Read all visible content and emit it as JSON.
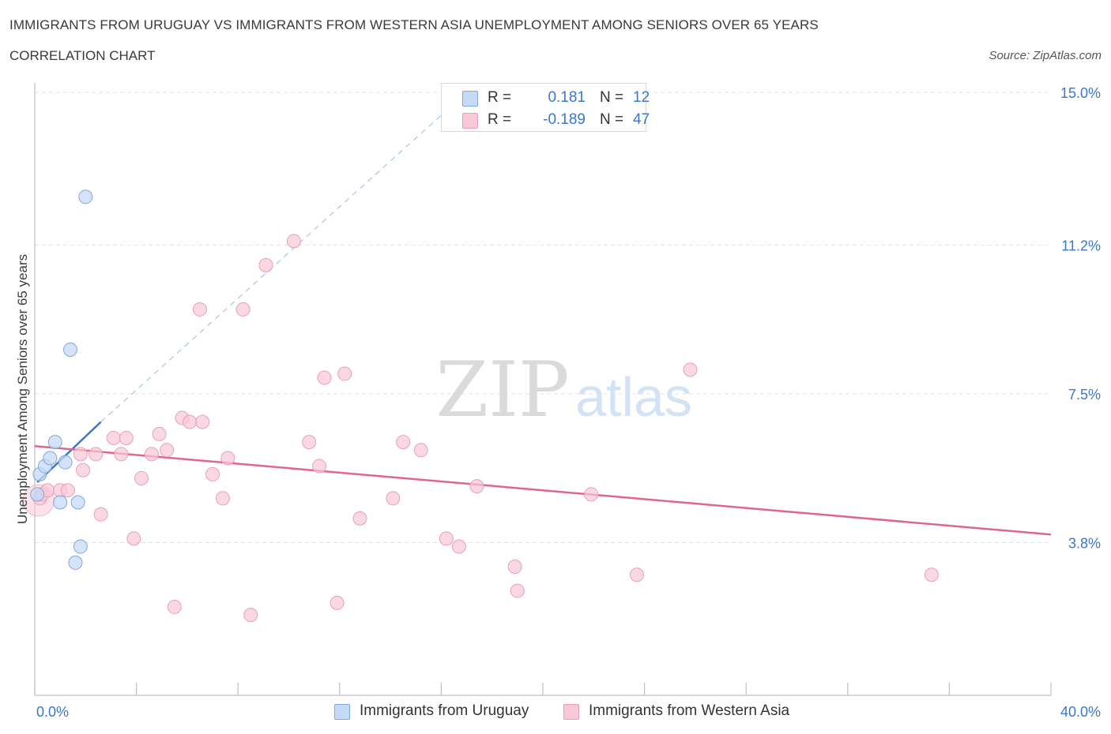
{
  "header": {
    "title": "IMMIGRANTS FROM URUGUAY VS IMMIGRANTS FROM WESTERN ASIA UNEMPLOYMENT AMONG SENIORS OVER 65 YEARS",
    "subtitle": "CORRELATION CHART",
    "source": "Source: ZipAtlas.com"
  },
  "legend": {
    "rows": [
      {
        "r_label": "R =",
        "r_value": "0.181",
        "n_label": "N =",
        "n_value": "12"
      },
      {
        "r_label": "R =",
        "r_value": "-0.189",
        "n_label": "N =",
        "n_value": "47"
      }
    ]
  },
  "colors": {
    "uruguay_fill": "#c5daf6",
    "uruguay_stroke": "#7fa8dc",
    "uruguay_line": "#3b78c9",
    "wasia_fill": "#f8c8d6",
    "wasia_stroke": "#e8a0b8",
    "wasia_line": "#e0668f",
    "tick_text": "#3b78c9",
    "grid": "#e3e3e3"
  },
  "chart_data": {
    "type": "scatter",
    "title": "IMMIGRANTS FROM URUGUAY VS IMMIGRANTS FROM WESTERN ASIA UNEMPLOYMENT AMONG SENIORS OVER 65 YEARS",
    "xlabel": "",
    "ylabel": "Unemployment Among Seniors over 65 years",
    "xlim": [
      0,
      40
    ],
    "ylim": [
      0,
      15
    ],
    "x_tick_labels": [
      "0.0%",
      "40.0%"
    ],
    "y_ticks": [
      3.8,
      7.5,
      11.2,
      15.0
    ],
    "y_tick_labels": [
      "3.8%",
      "7.5%",
      "11.2%",
      "15.0%"
    ],
    "watermark": {
      "zip": "ZIP",
      "atlas": "atlas"
    },
    "series": [
      {
        "name": "Immigrants from Uruguay",
        "points": [
          [
            0.1,
            5.0
          ],
          [
            0.2,
            5.5
          ],
          [
            0.4,
            5.7
          ],
          [
            0.6,
            5.9
          ],
          [
            0.8,
            6.3
          ],
          [
            1.0,
            4.8
          ],
          [
            1.2,
            5.8
          ],
          [
            1.4,
            8.6
          ],
          [
            1.6,
            3.3
          ],
          [
            1.7,
            4.8
          ],
          [
            1.8,
            3.7
          ],
          [
            2.0,
            12.4
          ]
        ],
        "trend": {
          "x0": 0.1,
          "y0": 5.3,
          "x1": 2.6,
          "y1": 6.8,
          "x_dash_end": 17.0,
          "y_dash_end": 15.0
        }
      },
      {
        "name": "Immigrants from Western Asia",
        "points": [
          [
            0.2,
            4.9
          ],
          [
            0.3,
            5.0
          ],
          [
            0.5,
            5.1
          ],
          [
            1.0,
            5.1
          ],
          [
            1.3,
            5.1
          ],
          [
            1.8,
            6.0
          ],
          [
            1.9,
            5.6
          ],
          [
            2.4,
            6.0
          ],
          [
            2.6,
            4.5
          ],
          [
            3.1,
            6.4
          ],
          [
            3.4,
            6.0
          ],
          [
            3.6,
            6.4
          ],
          [
            3.9,
            3.9
          ],
          [
            4.2,
            5.4
          ],
          [
            4.6,
            6.0
          ],
          [
            4.9,
            6.5
          ],
          [
            5.2,
            6.1
          ],
          [
            5.5,
            2.2
          ],
          [
            5.8,
            6.9
          ],
          [
            6.1,
            6.8
          ],
          [
            6.5,
            9.6
          ],
          [
            6.6,
            6.8
          ],
          [
            7.0,
            5.5
          ],
          [
            7.4,
            4.9
          ],
          [
            7.6,
            5.9
          ],
          [
            8.2,
            9.6
          ],
          [
            8.5,
            2.0
          ],
          [
            9.1,
            10.7
          ],
          [
            10.2,
            11.3
          ],
          [
            10.8,
            6.3
          ],
          [
            11.2,
            5.7
          ],
          [
            11.4,
            7.9
          ],
          [
            11.9,
            2.3
          ],
          [
            12.2,
            8.0
          ],
          [
            12.8,
            4.4
          ],
          [
            14.1,
            4.9
          ],
          [
            14.5,
            6.3
          ],
          [
            15.2,
            6.1
          ],
          [
            16.2,
            3.9
          ],
          [
            16.7,
            3.7
          ],
          [
            17.4,
            5.2
          ],
          [
            18.9,
            3.2
          ],
          [
            19.0,
            2.6
          ],
          [
            21.9,
            5.0
          ],
          [
            23.7,
            3.0
          ],
          [
            25.8,
            8.1
          ],
          [
            35.3,
            3.0
          ]
        ],
        "trend": {
          "x0": 0,
          "y0": 6.2,
          "x1": 40,
          "y1": 4.0
        }
      }
    ]
  }
}
